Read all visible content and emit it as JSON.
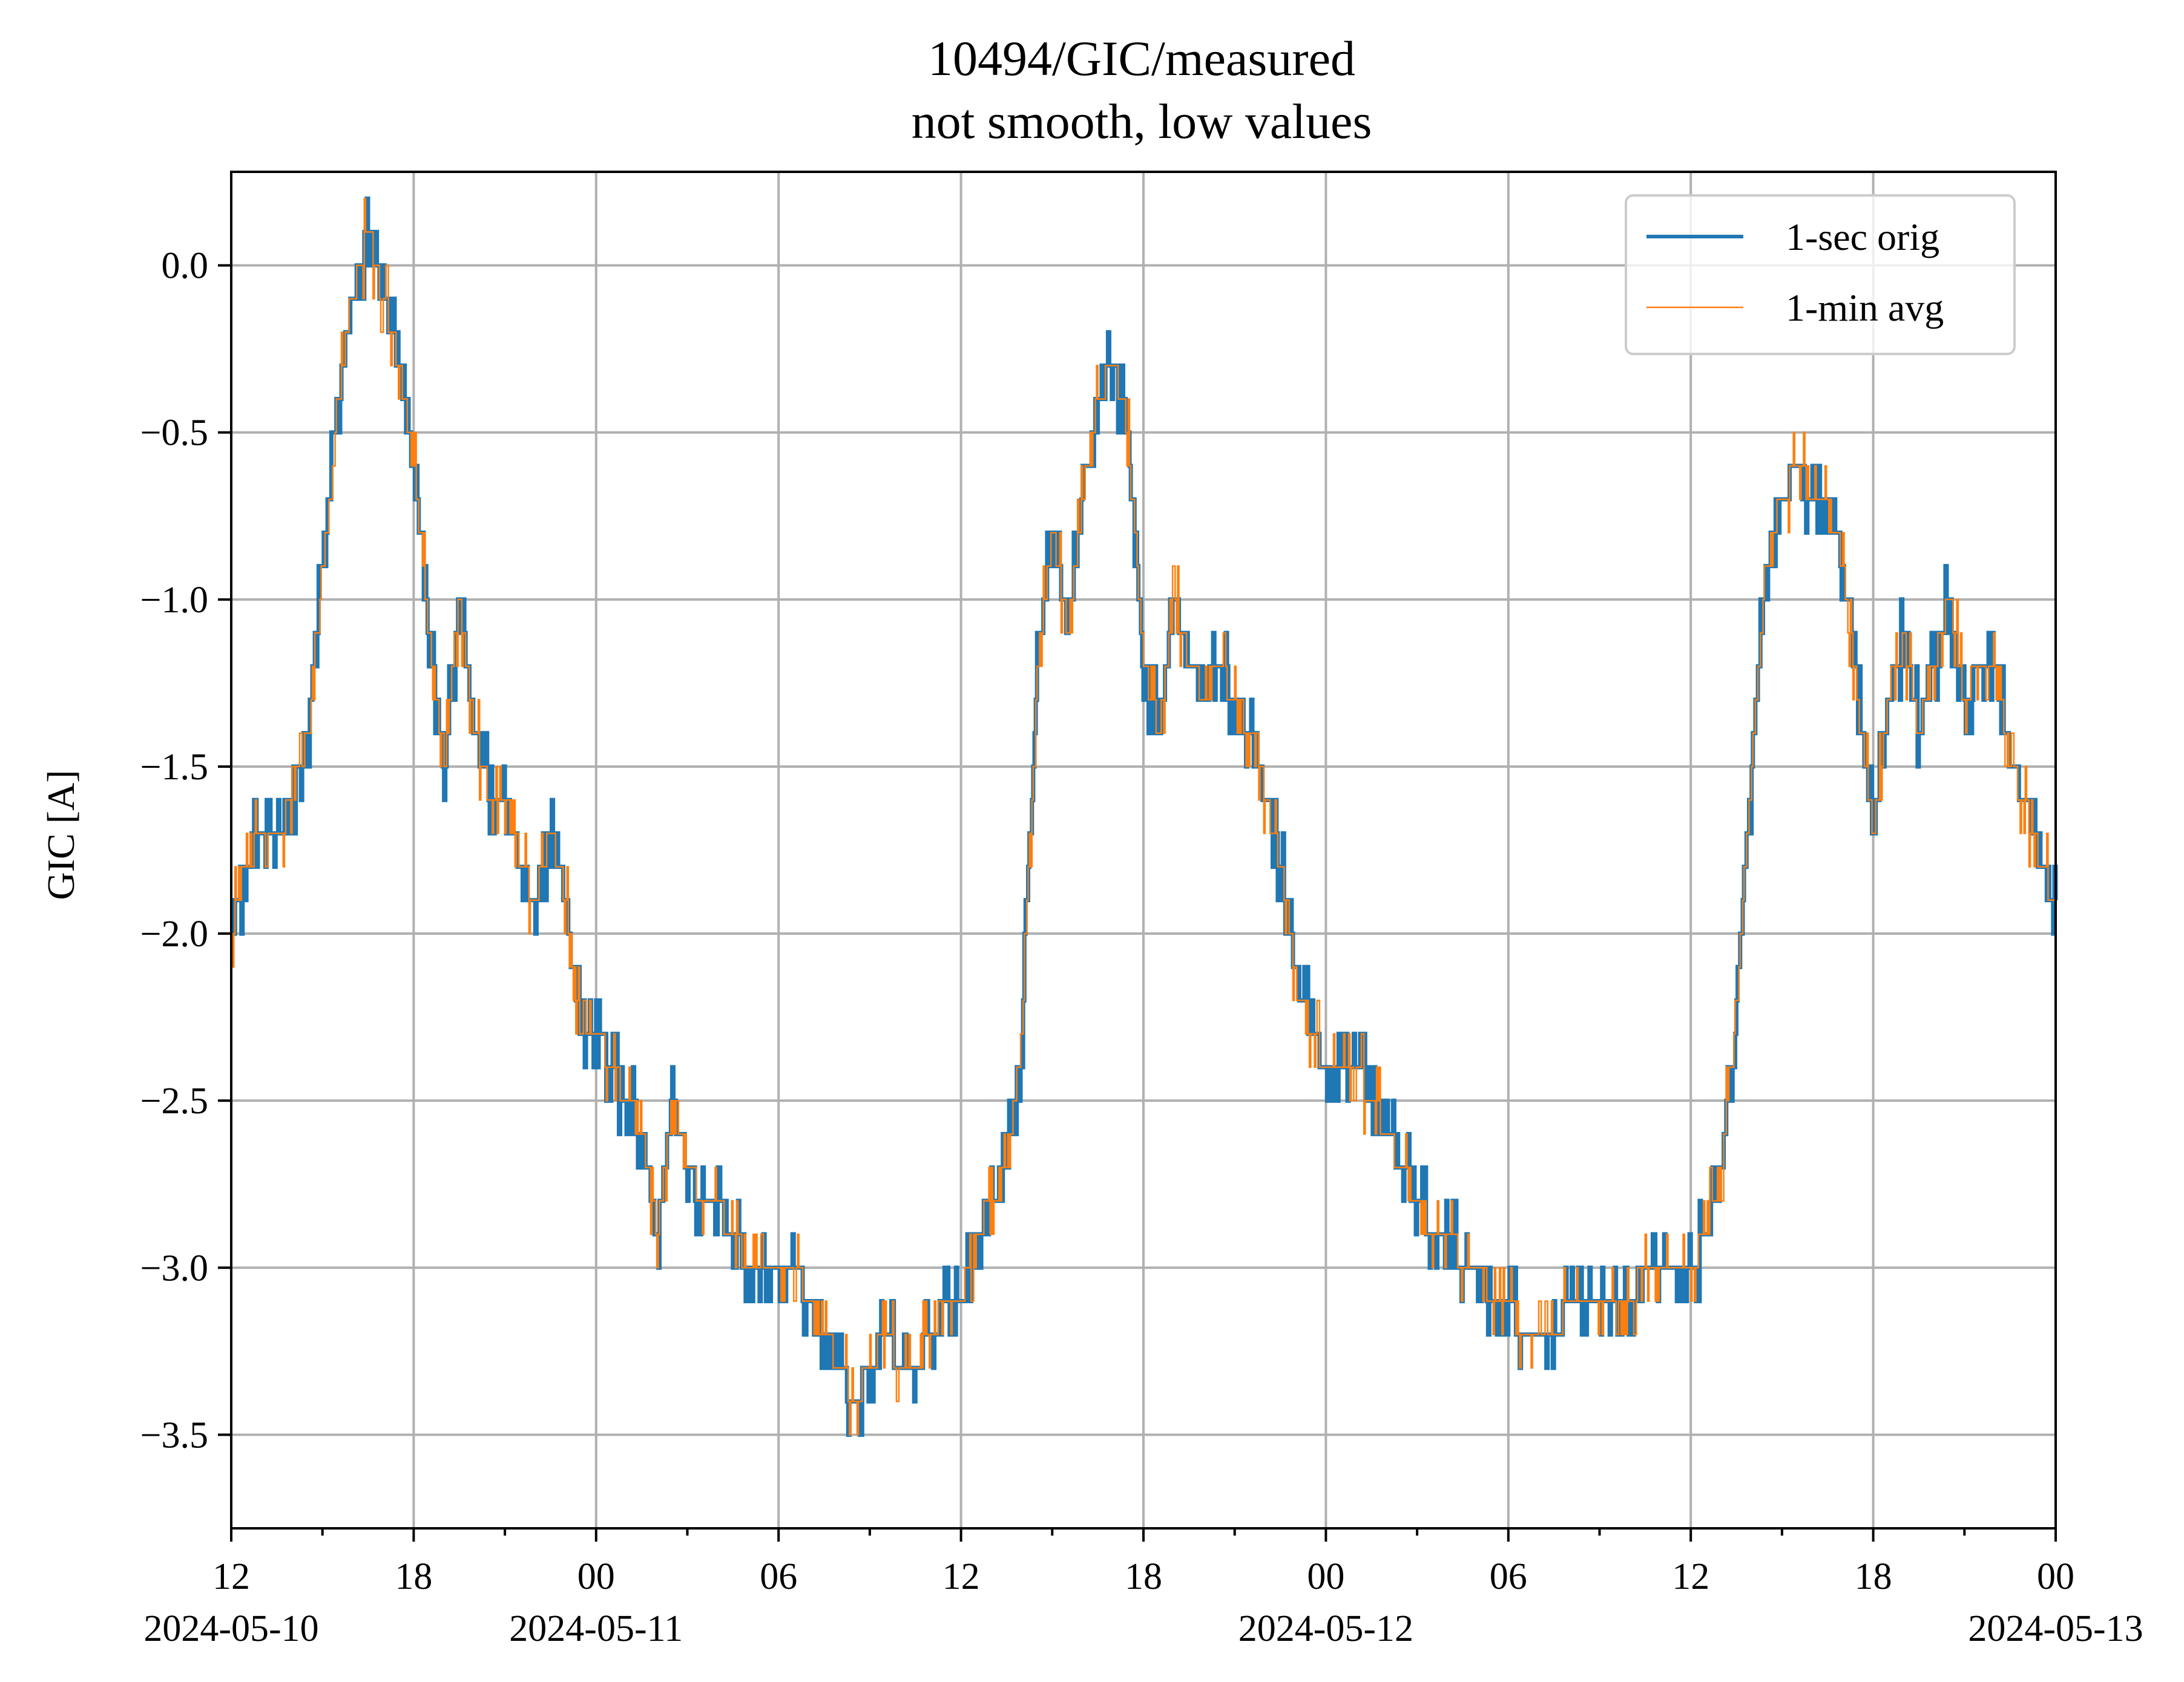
{
  "chart_data": {
    "type": "line",
    "title": "10494/GIC/measured",
    "subtitle": "not smooth, low values",
    "xlabel": "",
    "ylabel": "GIC [A]",
    "x_range": [
      "2024-05-10 12:00",
      "2024-05-13 00:00"
    ],
    "ylim": [
      -3.78,
      0.28
    ],
    "grid": true,
    "legend_position": "top-right",
    "x_major_ticks": [
      {
        "time": "2024-05-10 12:00",
        "label": "12",
        "date_label": "2024-05-10"
      },
      {
        "time": "2024-05-10 18:00",
        "label": "18",
        "date_label": ""
      },
      {
        "time": "2024-05-11 00:00",
        "label": "00",
        "date_label": "2024-05-11"
      },
      {
        "time": "2024-05-11 06:00",
        "label": "06",
        "date_label": ""
      },
      {
        "time": "2024-05-11 12:00",
        "label": "12",
        "date_label": ""
      },
      {
        "time": "2024-05-11 18:00",
        "label": "18",
        "date_label": ""
      },
      {
        "time": "2024-05-12 00:00",
        "label": "00",
        "date_label": "2024-05-12"
      },
      {
        "time": "2024-05-12 06:00",
        "label": "06",
        "date_label": ""
      },
      {
        "time": "2024-05-12 12:00",
        "label": "12",
        "date_label": ""
      },
      {
        "time": "2024-05-12 18:00",
        "label": "18",
        "date_label": ""
      },
      {
        "time": "2024-05-13 00:00",
        "label": "00",
        "date_label": "2024-05-13"
      }
    ],
    "x_minor_ticks": [
      "2024-05-10 15:00",
      "2024-05-10 21:00",
      "2024-05-11 03:00",
      "2024-05-11 09:00",
      "2024-05-11 15:00",
      "2024-05-11 21:00",
      "2024-05-12 03:00",
      "2024-05-12 09:00",
      "2024-05-12 15:00",
      "2024-05-12 21:00"
    ],
    "y_ticks": [
      0.0,
      -0.5,
      -1.0,
      -1.5,
      -2.0,
      -2.5,
      -3.0,
      -3.5
    ],
    "y_tick_labels": [
      "0.0",
      "−0.5",
      "−1.0",
      "−1.5",
      "−2.0",
      "−2.5",
      "−3.0",
      "−3.5"
    ],
    "series": [
      {
        "name": "1-sec orig",
        "color": "#1f77b4"
      },
      {
        "name": "1-min avg",
        "color": "#ff7f0e"
      }
    ],
    "points": [
      [
        "2024-05-10 12:00",
        -2.0
      ],
      [
        "2024-05-10 12:30",
        -1.8
      ],
      [
        "2024-05-10 13:00",
        -1.7
      ],
      [
        "2024-05-10 13:30",
        -1.7
      ],
      [
        "2024-05-10 14:00",
        -1.6
      ],
      [
        "2024-05-10 14:30",
        -1.4
      ],
      [
        "2024-05-10 15:00",
        -0.9
      ],
      [
        "2024-05-10 15:30",
        -0.4
      ],
      [
        "2024-05-10 16:00",
        -0.1
      ],
      [
        "2024-05-10 16:30",
        0.1
      ],
      [
        "2024-05-10 17:00",
        -0.1
      ],
      [
        "2024-05-10 17:30",
        -0.3
      ],
      [
        "2024-05-10 18:00",
        -0.6
      ],
      [
        "2024-05-10 18:30",
        -1.1
      ],
      [
        "2024-05-10 19:00",
        -1.5
      ],
      [
        "2024-05-10 19:30",
        -1.0
      ],
      [
        "2024-05-10 20:00",
        -1.4
      ],
      [
        "2024-05-10 20:30",
        -1.6
      ],
      [
        "2024-05-10 21:00",
        -1.6
      ],
      [
        "2024-05-10 21:30",
        -1.8
      ],
      [
        "2024-05-10 22:00",
        -1.9
      ],
      [
        "2024-05-10 22:30",
        -1.7
      ],
      [
        "2024-05-10 23:00",
        -1.9
      ],
      [
        "2024-05-10 23:30",
        -2.3
      ],
      [
        "2024-05-11 00:00",
        -2.3
      ],
      [
        "2024-05-11 00:30",
        -2.4
      ],
      [
        "2024-05-11 01:00",
        -2.5
      ],
      [
        "2024-05-11 01:30",
        -2.6
      ],
      [
        "2024-05-11 02:00",
        -2.9
      ],
      [
        "2024-05-11 02:30",
        -2.5
      ],
      [
        "2024-05-11 03:00",
        -2.7
      ],
      [
        "2024-05-11 03:30",
        -2.8
      ],
      [
        "2024-05-11 04:00",
        -2.8
      ],
      [
        "2024-05-11 04:30",
        -2.9
      ],
      [
        "2024-05-11 05:00",
        -3.0
      ],
      [
        "2024-05-11 05:30",
        -3.0
      ],
      [
        "2024-05-11 06:00",
        -3.0
      ],
      [
        "2024-05-11 06:30",
        -3.0
      ],
      [
        "2024-05-11 07:00",
        -3.1
      ],
      [
        "2024-05-11 07:30",
        -3.2
      ],
      [
        "2024-05-11 08:00",
        -3.3
      ],
      [
        "2024-05-11 08:30",
        -3.4
      ],
      [
        "2024-05-11 09:00",
        -3.3
      ],
      [
        "2024-05-11 09:30",
        -3.2
      ],
      [
        "2024-05-11 10:00",
        -3.3
      ],
      [
        "2024-05-11 10:30",
        -3.3
      ],
      [
        "2024-05-11 11:00",
        -3.2
      ],
      [
        "2024-05-11 11:30",
        -3.1
      ],
      [
        "2024-05-11 12:00",
        -3.1
      ],
      [
        "2024-05-11 12:30",
        -2.9
      ],
      [
        "2024-05-11 13:00",
        -2.8
      ],
      [
        "2024-05-11 13:30",
        -2.7
      ],
      [
        "2024-05-11 14:00",
        -2.3
      ],
      [
        "2024-05-11 14:30",
        -1.2
      ],
      [
        "2024-05-11 15:00",
        -0.8
      ],
      [
        "2024-05-11 15:30",
        -1.1
      ],
      [
        "2024-05-11 16:00",
        -0.7
      ],
      [
        "2024-05-11 16:30",
        -0.4
      ],
      [
        "2024-05-11 17:00",
        -0.3
      ],
      [
        "2024-05-11 17:30",
        -0.5
      ],
      [
        "2024-05-11 18:00",
        -1.2
      ],
      [
        "2024-05-11 18:30",
        -1.4
      ],
      [
        "2024-05-11 19:00",
        -1.0
      ],
      [
        "2024-05-11 19:30",
        -1.2
      ],
      [
        "2024-05-11 20:00",
        -1.3
      ],
      [
        "2024-05-11 20:30",
        -1.2
      ],
      [
        "2024-05-11 21:00",
        -1.3
      ],
      [
        "2024-05-11 21:30",
        -1.4
      ],
      [
        "2024-05-11 22:00",
        -1.6
      ],
      [
        "2024-05-11 22:30",
        -1.8
      ],
      [
        "2024-05-11 23:00",
        -2.1
      ],
      [
        "2024-05-11 23:30",
        -2.3
      ],
      [
        "2024-05-12 00:00",
        -2.4
      ],
      [
        "2024-05-12 00:30",
        -2.4
      ],
      [
        "2024-05-12 01:00",
        -2.4
      ],
      [
        "2024-05-12 01:30",
        -2.5
      ],
      [
        "2024-05-12 02:00",
        -2.6
      ],
      [
        "2024-05-12 02:30",
        -2.7
      ],
      [
        "2024-05-12 03:00",
        -2.8
      ],
      [
        "2024-05-12 03:30",
        -2.9
      ],
      [
        "2024-05-12 04:00",
        -2.9
      ],
      [
        "2024-05-12 04:30",
        -3.0
      ],
      [
        "2024-05-12 05:00",
        -3.0
      ],
      [
        "2024-05-12 05:30",
        -3.1
      ],
      [
        "2024-05-12 06:00",
        -3.1
      ],
      [
        "2024-05-12 06:30",
        -3.2
      ],
      [
        "2024-05-12 07:00",
        -3.2
      ],
      [
        "2024-05-12 07:30",
        -3.2
      ],
      [
        "2024-05-12 08:00",
        -3.1
      ],
      [
        "2024-05-12 08:30",
        -3.1
      ],
      [
        "2024-05-12 09:00",
        -3.1
      ],
      [
        "2024-05-12 09:30",
        -3.1
      ],
      [
        "2024-05-12 10:00",
        -3.1
      ],
      [
        "2024-05-12 10:30",
        -3.0
      ],
      [
        "2024-05-12 11:00",
        -3.0
      ],
      [
        "2024-05-12 11:30",
        -3.0
      ],
      [
        "2024-05-12 12:00",
        -3.0
      ],
      [
        "2024-05-12 12:30",
        -2.9
      ],
      [
        "2024-05-12 13:00",
        -2.7
      ],
      [
        "2024-05-12 13:30",
        -2.2
      ],
      [
        "2024-05-12 14:00",
        -1.5
      ],
      [
        "2024-05-12 14:30",
        -0.9
      ],
      [
        "2024-05-12 15:00",
        -0.7
      ],
      [
        "2024-05-12 15:30",
        -0.6
      ],
      [
        "2024-05-12 16:00",
        -0.7
      ],
      [
        "2024-05-12 16:30",
        -0.7
      ],
      [
        "2024-05-12 17:00",
        -0.9
      ],
      [
        "2024-05-12 17:30",
        -1.3
      ],
      [
        "2024-05-12 18:00",
        -1.7
      ],
      [
        "2024-05-12 18:30",
        -1.3
      ],
      [
        "2024-05-12 19:00",
        -1.1
      ],
      [
        "2024-05-12 19:30",
        -1.4
      ],
      [
        "2024-05-12 20:00",
        -1.2
      ],
      [
        "2024-05-12 20:30",
        -1.0
      ],
      [
        "2024-05-12 21:00",
        -1.3
      ],
      [
        "2024-05-12 21:30",
        -1.2
      ],
      [
        "2024-05-12 22:00",
        -1.2
      ],
      [
        "2024-05-12 22:30",
        -1.5
      ],
      [
        "2024-05-12 23:00",
        -1.6
      ],
      [
        "2024-05-12 23:30",
        -1.8
      ],
      [
        "2024-05-13 00:00",
        -1.9
      ]
    ]
  }
}
